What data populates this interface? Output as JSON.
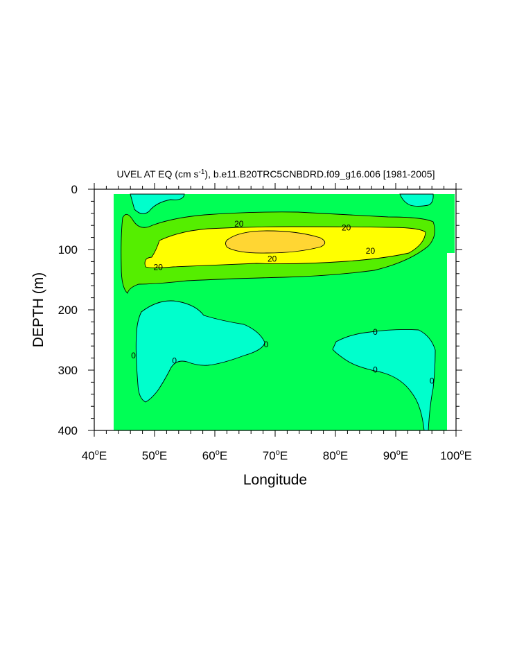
{
  "chart_data": {
    "type": "contour",
    "title": "UVEL AT EQ (cm s",
    "title_superscript": "-1",
    "title_rest": "), b.e11.B20TRC5CNBDRD.f09_g16.006 [1981-2005]",
    "xlabel": "Longitude",
    "ylabel": "DEPTH (m)",
    "xlim": [
      40,
      100
    ],
    "ylim": [
      0,
      400
    ],
    "y_inverted": true,
    "x_ticks": [
      {
        "value": 40,
        "label": "40",
        "suffix": "E"
      },
      {
        "value": 50,
        "label": "50",
        "suffix": "E"
      },
      {
        "value": 60,
        "label": "60",
        "suffix": "E"
      },
      {
        "value": 70,
        "label": "70",
        "suffix": "E"
      },
      {
        "value": 80,
        "label": "80",
        "suffix": "E"
      },
      {
        "value": 90,
        "label": "90",
        "suffix": "E"
      },
      {
        "value": 100,
        "label": "100",
        "suffix": "E"
      }
    ],
    "y_ticks": [
      {
        "value": 0,
        "label": "0"
      },
      {
        "value": 100,
        "label": "100"
      },
      {
        "value": 200,
        "label": "200"
      },
      {
        "value": 300,
        "label": "300"
      },
      {
        "value": 400,
        "label": "400"
      }
    ],
    "fill_colors": {
      "negative": "#00ffcc",
      "zero_to_20": "#00ff55",
      "20_to_40": "#55ee00",
      "40_to_60": "#ffff00",
      "above_60": "#ffd633"
    },
    "contour_labels": [
      {
        "text": "20",
        "lon": 64,
        "depth": 57
      },
      {
        "text": "20",
        "lon": 81.8,
        "depth": 63
      },
      {
        "text": "20",
        "lon": 85.8,
        "depth": 102
      },
      {
        "text": "20",
        "lon": 69.5,
        "depth": 115
      },
      {
        "text": "20",
        "lon": 50.6,
        "depth": 129
      },
      {
        "text": "0",
        "lon": 86.6,
        "depth": 236
      },
      {
        "text": "0",
        "lon": 86.6,
        "depth": 299
      },
      {
        "text": "0",
        "lon": 46.5,
        "depth": 275
      },
      {
        "text": "0",
        "lon": 53.3,
        "depth": 284
      },
      {
        "text": "0",
        "lon": 68.5,
        "depth": 257
      },
      {
        "text": "0",
        "lon": 96,
        "depth": 317
      }
    ]
  }
}
